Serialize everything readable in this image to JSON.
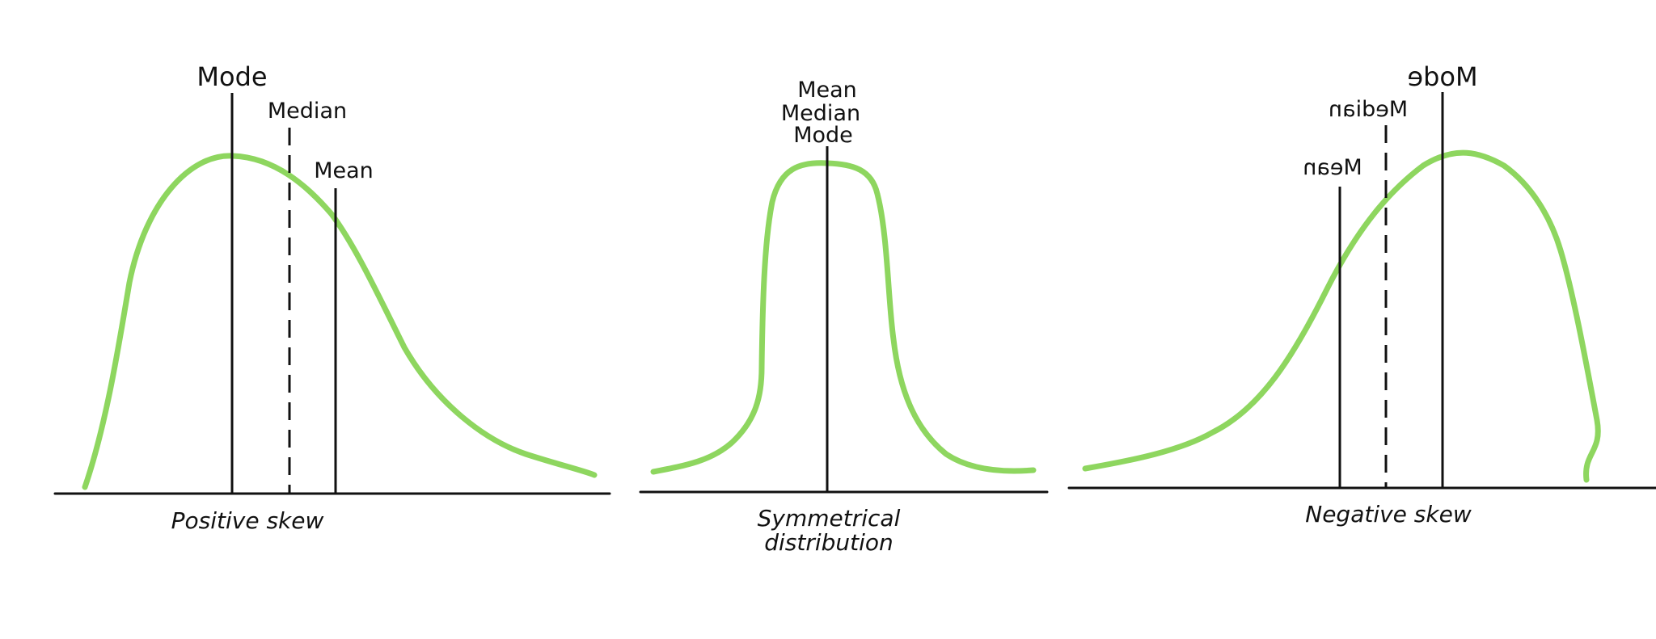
{
  "colors": {
    "curve": "#8ed65f",
    "ink": "#111111",
    "background": "#ffffff"
  },
  "panels": [
    {
      "id": "positive-skew",
      "caption": [
        "Positive skew"
      ],
      "labels": {
        "mode": "Mode",
        "median": "Median",
        "mean": "Mean"
      }
    },
    {
      "id": "symmetrical",
      "caption": [
        "Symmetrical",
        "distribution"
      ],
      "labels": {
        "mean": "Mean",
        "median": "Median",
        "mode": "Mode"
      }
    },
    {
      "id": "negative-skew",
      "caption": [
        "Negative skew"
      ],
      "labels": {
        "mode": "Mode",
        "median": "Median",
        "mean": "Mean"
      },
      "labels_mirrored": true
    }
  ]
}
